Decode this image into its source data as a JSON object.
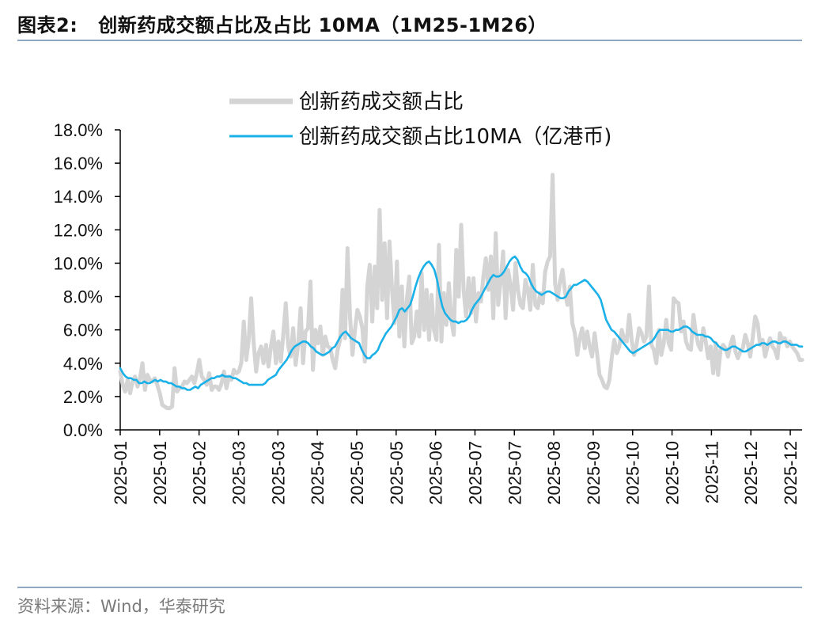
{
  "header": {
    "figure_label": "图表2:",
    "title": "创新药成交额占比及占比 10MA（1M25-1M26）"
  },
  "footer": {
    "source": "资料来源：Wind，华泰研究"
  },
  "colors": {
    "ratio": "#d4d4d4",
    "ma10": "#1ab0e8",
    "axis": "#000000",
    "rule": "#8fa9c2"
  },
  "chart_data": {
    "type": "line",
    "title": "创新药成交额占比及占比 10MA（1M25-1M26）",
    "ylim": [
      0,
      18
    ],
    "y_ticks": [
      "0.0%",
      "2.0%",
      "4.0%",
      "6.0%",
      "8.0%",
      "10.0%",
      "12.0%",
      "14.0%",
      "16.0%",
      "18.0%"
    ],
    "x_tick_labels": [
      "2025-01",
      "2025-01",
      "2025-02",
      "2025-03",
      "2025-03",
      "2025-04",
      "2025-05",
      "2025-05",
      "2025-06",
      "2025-07",
      "2025-07",
      "2025-08",
      "2025-09",
      "2025-10",
      "2025-10",
      "2025-11",
      "2025-12",
      "2025-12"
    ],
    "series": [
      {
        "name": "创新药成交额占比",
        "color": "#d4d4d4",
        "values": [
          3.5,
          2.7,
          2.3,
          3.0,
          2.2,
          2.9,
          3.2,
          2.6,
          3.1,
          4.0,
          2.4,
          3.3,
          3.0,
          2.9,
          3.1,
          2.7,
          2.2,
          1.5,
          1.4,
          1.3,
          1.3,
          1.4,
          3.7,
          2.3,
          2.5,
          2.6,
          2.9,
          2.8,
          3.0,
          3.2,
          2.8,
          3.4,
          4.2,
          3.2,
          3.0,
          2.7,
          3.4,
          2.4,
          2.6,
          2.6,
          2.4,
          2.8,
          3.5,
          2.5,
          3.2,
          3.0,
          3.6,
          3.4,
          3.5,
          4.0,
          6.5,
          4.2,
          5.4,
          7.9,
          5.2,
          3.5,
          4.6,
          5.0,
          4.0,
          5.1,
          3.8,
          5.0,
          5.9,
          4.0,
          5.3,
          4.1,
          5.7,
          7.6,
          5.0,
          4.4,
          6.1,
          3.9,
          5.1,
          7.3,
          4.0,
          5.9,
          6.1,
          8.9,
          3.6,
          6.0,
          5.2,
          6.2,
          4.5,
          5.6,
          5.0,
          4.9,
          4.2,
          3.7,
          4.8,
          5.4,
          8.4,
          5.5,
          10.9,
          6.8,
          4.5,
          6.0,
          7.2,
          6.8,
          6.1,
          4.1,
          8.6,
          9.9,
          6.5,
          9.8,
          7.3,
          13.2,
          7.8,
          11.2,
          6.7,
          11.3,
          8.4,
          6.4,
          10.1,
          5.6,
          8.6,
          5.0,
          7.8,
          9.2,
          5.2,
          5.6,
          7.1,
          5.6,
          9.4,
          6.0,
          8.4,
          5.4,
          8.1,
          6.0,
          5.4,
          11.1,
          5.3,
          8.2,
          6.3,
          8.8,
          6.6,
          5.7,
          10.8,
          8.0,
          12.3,
          8.4,
          6.8,
          9.1,
          7.0,
          9.1,
          6.5,
          8.2,
          7.7,
          9.2,
          10.3,
          8.4,
          10.4,
          6.7,
          11.8,
          7.5,
          9.0,
          10.7,
          6.7,
          9.6,
          8.7,
          7.2,
          10.0,
          8.4,
          7.5,
          7.3,
          9.0,
          8.4,
          7.2,
          9.9,
          7.5,
          7.3,
          8.2,
          7.6,
          9.5,
          10.1,
          10.4,
          15.3,
          8.8,
          7.8,
          8.9,
          9.6,
          8.3,
          7.5,
          8.6,
          6.4,
          5.8,
          4.5,
          5.5,
          6.1,
          4.9,
          5.9,
          5.0,
          4.4,
          5.8,
          4.6,
          3.3,
          3.0,
          2.6,
          2.5,
          3.0,
          4.4,
          5.4,
          4.6,
          5.0,
          6.0,
          5.4,
          5.3,
          6.9,
          5.4,
          4.5,
          5.1,
          6.1,
          5.8,
          5.3,
          5.6,
          8.6,
          5.1,
          4.8,
          4.0,
          6.0,
          4.5,
          5.2,
          6.6,
          5.2,
          4.8,
          7.9,
          7.7,
          7.6,
          5.9,
          6.5,
          5.3,
          4.9,
          4.8,
          6.9,
          5.8,
          5.1,
          4.8,
          6.1,
          5.3,
          4.3,
          5.0,
          3.4,
          5.2,
          3.3,
          4.8,
          5.1,
          4.9,
          4.4,
          5.1,
          5.6,
          4.7,
          4.3,
          4.7,
          4.9,
          5.7,
          5.2,
          4.4,
          5.5,
          6.8,
          6.4,
          5.1,
          5.4,
          4.4,
          5.0,
          5.5,
          5.0,
          4.8,
          4.3,
          5.8,
          5.4,
          5.5,
          5.0,
          5.3,
          5.0,
          4.8,
          4.6,
          4.2,
          4.2
        ],
        "note": "approximate daily series read off chart"
      },
      {
        "name": "创新药成交额占比10MA（亿港币)",
        "color": "#1ab0e8",
        "values": [
          3.7,
          3.4,
          3.2,
          3.1,
          3.1,
          3.0,
          3.0,
          2.8,
          2.8,
          2.9,
          2.8,
          2.8,
          2.9,
          3.0,
          2.9,
          3.0,
          2.9,
          2.9,
          2.8,
          2.8,
          2.7,
          2.6,
          2.6,
          2.5,
          2.5,
          2.4,
          2.4,
          2.5,
          2.6,
          2.5,
          2.7,
          2.8,
          2.9,
          3.0,
          3.1,
          3.1,
          3.2,
          3.2,
          3.3,
          3.2,
          3.2,
          3.2,
          3.1,
          3.1,
          3.0,
          2.9,
          2.8,
          2.8,
          2.7,
          2.7,
          2.7,
          2.7,
          2.7,
          2.7,
          2.8,
          3.0,
          3.1,
          3.2,
          3.3,
          3.6,
          3.8,
          4.0,
          4.2,
          4.5,
          4.8,
          5.0,
          5.1,
          5.2,
          5.3,
          5.3,
          5.2,
          5.0,
          4.9,
          4.7,
          4.6,
          4.5,
          4.5,
          4.6,
          4.7,
          4.9,
          5.0,
          5.3,
          5.6,
          5.8,
          5.9,
          5.7,
          5.5,
          5.4,
          5.3,
          5.2,
          4.8,
          4.5,
          4.3,
          4.3,
          4.5,
          4.6,
          4.8,
          5.2,
          5.5,
          5.8,
          6.0,
          6.2,
          6.5,
          6.8,
          7.2,
          7.3,
          7.1,
          7.3,
          7.5,
          8.0,
          8.6,
          9.1,
          9.5,
          9.8,
          10.0,
          10.1,
          9.9,
          9.6,
          9.0,
          8.1,
          7.4,
          7.0,
          6.8,
          6.6,
          6.5,
          6.5,
          6.4,
          6.5,
          6.5,
          6.6,
          6.8,
          7.2,
          7.5,
          7.7,
          7.9,
          8.2,
          8.5,
          8.8,
          9.1,
          9.3,
          9.2,
          9.2,
          9.3,
          9.5,
          9.8,
          10.1,
          10.3,
          10.4,
          10.2,
          9.8,
          9.5,
          9.4,
          9.2,
          8.8,
          8.5,
          8.3,
          8.2,
          8.1,
          8.2,
          8.3,
          8.3,
          8.2,
          8.1,
          8.0,
          7.9,
          7.9,
          8.0,
          8.3,
          8.5,
          8.7,
          8.7,
          8.8,
          8.9,
          9.0,
          8.9,
          8.7,
          8.5,
          8.3,
          8.1,
          7.8,
          7.2,
          6.6,
          6.3,
          6.0,
          5.9,
          5.7,
          5.5,
          5.3,
          5.1,
          4.9,
          4.7,
          4.6,
          4.7,
          4.8,
          4.9,
          5.0,
          5.1,
          5.2,
          5.3,
          5.5,
          5.8,
          6.0,
          6.0,
          6.0,
          6.0,
          5.9,
          5.9,
          6.0,
          6.0,
          6.1,
          6.2,
          6.2,
          6.1,
          5.9,
          5.8,
          5.7,
          5.7,
          5.7,
          5.6,
          5.6,
          5.5,
          5.3,
          5.2,
          5.0,
          4.9,
          4.8,
          4.8,
          4.9,
          5.0,
          5.0,
          4.9,
          4.8,
          4.7,
          4.7,
          4.8,
          4.9,
          5.0,
          5.1,
          5.1,
          5.2,
          5.2,
          5.1,
          5.2,
          5.3,
          5.3,
          5.2,
          5.2,
          5.3,
          5.3,
          5.2,
          5.1,
          5.1,
          5.1,
          5.0,
          5.0
        ],
        "note": "approximate"
      }
    ]
  }
}
